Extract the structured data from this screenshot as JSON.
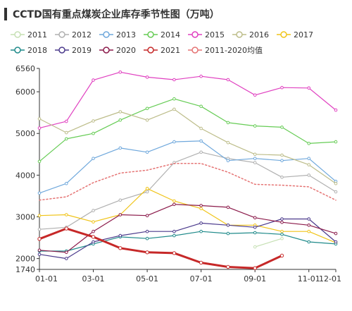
{
  "header": {
    "title": "CCTD国有重点煤炭企业库存季节性图（万吨）"
  },
  "legend": {
    "rows": [
      [
        {
          "name": "2011",
          "color": "#c6e0b4"
        },
        {
          "name": "2012",
          "color": "#b0b0b0"
        },
        {
          "name": "2013",
          "color": "#6fa8dc"
        },
        {
          "name": "2014",
          "color": "#66cc55"
        },
        {
          "name": "2015",
          "color": "#e040c0"
        },
        {
          "name": "2016",
          "color": "#bdbd8a"
        },
        {
          "name": "2017",
          "color": "#f0c419"
        }
      ],
      [
        {
          "name": "2018",
          "color": "#1f8a8a"
        },
        {
          "name": "2019",
          "color": "#4b3a8c"
        },
        {
          "name": "2020",
          "color": "#8b1a4a"
        },
        {
          "name": "2021",
          "color": "#c62828"
        },
        {
          "name": "2011-2020均值",
          "color": "#e57373"
        }
      ]
    ]
  },
  "chart_data": {
    "type": "line",
    "title": "CCTD国有重点煤炭企业库存季节性图（万吨）",
    "x": [
      "01-01",
      "02-01",
      "03-01",
      "04-01",
      "05-01",
      "06-01",
      "07-01",
      "08-01",
      "09-01",
      "10-01",
      "11-01",
      "12-01"
    ],
    "x_ticks": [
      "01-01",
      "03-01",
      "05-01",
      "07-01",
      "09-01",
      "11-01",
      "12-01"
    ],
    "y_ticks": [
      1740,
      2000,
      3000,
      4000,
      5000,
      6000,
      6560
    ],
    "ylim": [
      1740,
      6560
    ],
    "grid": false,
    "series": [
      {
        "name": "2011",
        "color": "#c6e0b4",
        "style": "solid",
        "width": 1.2,
        "values": [
          null,
          null,
          null,
          null,
          null,
          null,
          null,
          null,
          2280,
          2480,
          null,
          null
        ]
      },
      {
        "name": "2012",
        "color": "#b0b0b0",
        "style": "solid",
        "width": 1.2,
        "values": [
          2700,
          2750,
          3150,
          3400,
          3600,
          4300,
          4550,
          4400,
          4300,
          3950,
          4000,
          3600
        ]
      },
      {
        "name": "2013",
        "color": "#6fa8dc",
        "style": "solid",
        "width": 1.2,
        "values": [
          3570,
          3800,
          4400,
          4650,
          4550,
          4800,
          4820,
          4350,
          4400,
          4350,
          4400,
          3850
        ]
      },
      {
        "name": "2014",
        "color": "#66cc55",
        "style": "solid",
        "width": 1.2,
        "values": [
          4330,
          4870,
          5000,
          5320,
          5600,
          5830,
          5650,
          5260,
          5180,
          5150,
          4760,
          4800
        ]
      },
      {
        "name": "2015",
        "color": "#e040c0",
        "style": "solid",
        "width": 1.2,
        "values": [
          5130,
          5290,
          6280,
          6470,
          6350,
          6290,
          6370,
          6290,
          5920,
          6100,
          6090,
          5560
        ]
      },
      {
        "name": "2016",
        "color": "#bdbd8a",
        "style": "solid",
        "width": 1.2,
        "values": [
          5350,
          5020,
          5300,
          5520,
          5320,
          5580,
          5120,
          4780,
          4500,
          4480,
          4250,
          3800
        ]
      },
      {
        "name": "2017",
        "color": "#f0c419",
        "style": "solid",
        "width": 1.2,
        "values": [
          3030,
          3050,
          2880,
          3050,
          3680,
          3380,
          3200,
          2800,
          2800,
          2650,
          2650,
          2380
        ]
      },
      {
        "name": "2018",
        "color": "#1f8a8a",
        "style": "solid",
        "width": 1.2,
        "values": [
          2180,
          2180,
          2350,
          2520,
          2480,
          2550,
          2650,
          2600,
          2620,
          2580,
          2400,
          2350
        ]
      },
      {
        "name": "2019",
        "color": "#4b3a8c",
        "style": "solid",
        "width": 1.2,
        "values": [
          2100,
          2000,
          2400,
          2550,
          2650,
          2650,
          2850,
          2800,
          2750,
          2950,
          2950,
          2400
        ]
      },
      {
        "name": "2020",
        "color": "#8b1a4a",
        "style": "solid",
        "width": 1.2,
        "values": [
          2200,
          2150,
          2650,
          3050,
          3030,
          3300,
          3270,
          3230,
          2980,
          2870,
          2800,
          2600
        ]
      },
      {
        "name": "2021",
        "color": "#c62828",
        "style": "solid",
        "width": 3,
        "values": [
          2470,
          2720,
          2520,
          2250,
          2150,
          2130,
          1900,
          1800,
          1770,
          2070,
          null,
          null
        ]
      },
      {
        "name": "2011-2020均值",
        "color": "#e57373",
        "style": "dotted",
        "width": 1.5,
        "values": [
          3400,
          3480,
          3820,
          4050,
          4120,
          4280,
          4280,
          4070,
          3780,
          3760,
          3720,
          3400
        ]
      }
    ]
  }
}
